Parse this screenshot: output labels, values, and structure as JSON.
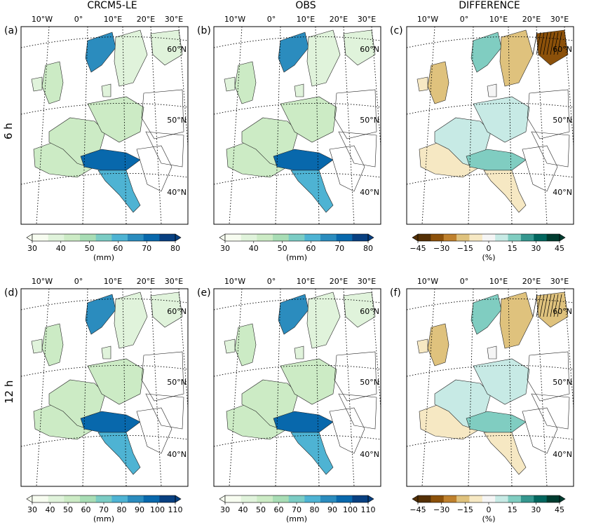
{
  "columns": [
    "CRCM5-LE",
    "OBS",
    "DIFFERENCE"
  ],
  "rows": [
    "6 h",
    "12 h"
  ],
  "panels": [
    {
      "letter": "(a)",
      "kind": "precip",
      "row": 0,
      "col": 0
    },
    {
      "letter": "(b)",
      "kind": "precip",
      "row": 0,
      "col": 1
    },
    {
      "letter": "(c)",
      "kind": "diff",
      "row": 0,
      "col": 2
    },
    {
      "letter": "(d)",
      "kind": "precip",
      "row": 1,
      "col": 0
    },
    {
      "letter": "(e)",
      "kind": "precip",
      "row": 1,
      "col": 1
    },
    {
      "letter": "(f)",
      "kind": "diff",
      "row": 1,
      "col": 2
    }
  ],
  "lon_labels": [
    "10°W",
    "0°",
    "10°E",
    "20°E",
    "30°E"
  ],
  "lat_labels": [
    "60°N",
    "50°N",
    "40°N"
  ],
  "colorbars": {
    "precip6": {
      "ticks": [
        "30",
        "40",
        "50",
        "60",
        "70",
        "80"
      ],
      "unit": "(mm)"
    },
    "precip12": {
      "ticks": [
        "30",
        "40",
        "50",
        "60",
        "70",
        "80",
        "90",
        "100",
        "110"
      ],
      "unit": "(mm)"
    },
    "diff": {
      "ticks": [
        "−45",
        "−30",
        "−15",
        "0",
        "15",
        "30",
        "45"
      ],
      "unit": "(%)"
    }
  },
  "colors": {
    "blues": [
      "#f7fcf0",
      "#e0f3db",
      "#ccebc5",
      "#a8ddb5",
      "#7bccc4",
      "#4eb3d3",
      "#2b8cbe",
      "#0868ac",
      "#084081"
    ],
    "brbg": [
      "#543005",
      "#8c510a",
      "#bf812d",
      "#dfc27d",
      "#f6e8c3",
      "#f5f5f5",
      "#c7eae5",
      "#80cdc1",
      "#35978f",
      "#01665e",
      "#003c30"
    ]
  }
}
